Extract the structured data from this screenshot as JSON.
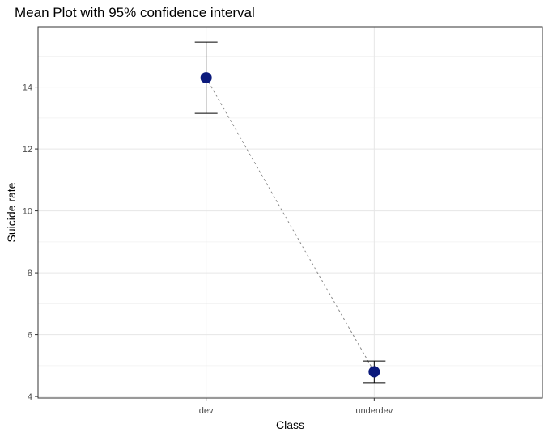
{
  "chart_data": {
    "type": "scatter",
    "title": "Mean Plot with 95% confidence interval",
    "xlabel": "Class",
    "ylabel": "Suicide rate",
    "categories": [
      "dev",
      "underdev"
    ],
    "means": [
      14.3,
      4.8
    ],
    "ci_lower": [
      13.15,
      4.45
    ],
    "ci_upper": [
      15.45,
      5.15
    ],
    "ylim": [
      3.95,
      15.95
    ],
    "yticks": [
      4,
      6,
      8,
      10,
      12,
      14
    ],
    "grid": true,
    "connector": "dashed",
    "point_color": "#0b1a7c"
  }
}
